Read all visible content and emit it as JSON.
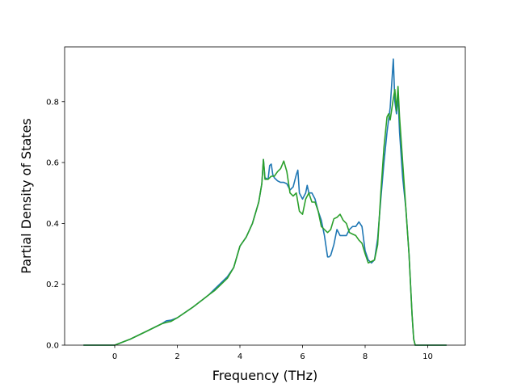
{
  "chart_data": {
    "type": "line",
    "xlabel": "Frequency (THz)",
    "ylabel": "Partial Density of States",
    "xlim": [
      -1.6,
      11.2
    ],
    "ylim": [
      0.0,
      0.98
    ],
    "x_ticks": [
      "0",
      "2",
      "4",
      "6",
      "8",
      "10"
    ],
    "y_ticks": [
      "0.0",
      "0.2",
      "0.4",
      "0.6",
      "0.8"
    ],
    "grid": false,
    "legend": "none",
    "series": [
      {
        "color": "#1f77b4",
        "x": [
          -1.0,
          0.0,
          0.5,
          1.0,
          1.5,
          1.65,
          1.8,
          2.0,
          2.5,
          3.0,
          3.2,
          3.4,
          3.6,
          3.8,
          4.0,
          4.2,
          4.4,
          4.6,
          4.7,
          4.75,
          4.8,
          4.9,
          4.95,
          5.0,
          5.05,
          5.1,
          5.2,
          5.3,
          5.4,
          5.5,
          5.6,
          5.7,
          5.8,
          5.85,
          5.9,
          6.0,
          6.1,
          6.15,
          6.2,
          6.3,
          6.4,
          6.5,
          6.6,
          6.7,
          6.8,
          6.85,
          6.9,
          7.0,
          7.1,
          7.2,
          7.3,
          7.4,
          7.5,
          7.6,
          7.7,
          7.8,
          7.9,
          8.0,
          8.1,
          8.2,
          8.3,
          8.4,
          8.5,
          8.6,
          8.7,
          8.8,
          8.9,
          8.95,
          9.0,
          9.05,
          9.1,
          9.2,
          9.3,
          9.4,
          9.5,
          9.55,
          9.6,
          9.7,
          10.0,
          10.6
        ],
        "y": [
          0.0,
          0.0,
          0.02,
          0.045,
          0.07,
          0.08,
          0.082,
          0.09,
          0.125,
          0.165,
          0.185,
          0.205,
          0.225,
          0.255,
          0.325,
          0.355,
          0.4,
          0.47,
          0.53,
          0.61,
          0.55,
          0.545,
          0.59,
          0.595,
          0.56,
          0.55,
          0.54,
          0.535,
          0.535,
          0.53,
          0.51,
          0.52,
          0.56,
          0.575,
          0.5,
          0.48,
          0.5,
          0.525,
          0.5,
          0.5,
          0.48,
          0.44,
          0.41,
          0.36,
          0.29,
          0.29,
          0.295,
          0.33,
          0.38,
          0.36,
          0.36,
          0.36,
          0.38,
          0.39,
          0.39,
          0.405,
          0.39,
          0.31,
          0.28,
          0.27,
          0.28,
          0.35,
          0.48,
          0.6,
          0.7,
          0.78,
          0.94,
          0.8,
          0.76,
          0.82,
          0.7,
          0.55,
          0.45,
          0.3,
          0.1,
          0.02,
          0.0,
          0.0,
          0.0,
          0.0
        ]
      },
      {
        "color": "#2ca02c",
        "x": [
          -1.0,
          0.0,
          0.5,
          1.0,
          1.5,
          1.65,
          1.8,
          2.0,
          2.5,
          3.0,
          3.2,
          3.4,
          3.6,
          3.8,
          4.0,
          4.2,
          4.4,
          4.6,
          4.7,
          4.75,
          4.8,
          4.9,
          5.0,
          5.1,
          5.2,
          5.3,
          5.4,
          5.5,
          5.6,
          5.7,
          5.8,
          5.9,
          6.0,
          6.1,
          6.2,
          6.3,
          6.4,
          6.5,
          6.6,
          6.7,
          6.8,
          6.9,
          7.0,
          7.1,
          7.2,
          7.3,
          7.4,
          7.5,
          7.6,
          7.7,
          7.8,
          7.9,
          8.0,
          8.1,
          8.2,
          8.3,
          8.4,
          8.5,
          8.6,
          8.7,
          8.75,
          8.8,
          8.9,
          8.95,
          9.0,
          9.05,
          9.1,
          9.2,
          9.3,
          9.4,
          9.5,
          9.55,
          9.6,
          9.7,
          10.0,
          10.6
        ],
        "y": [
          0.0,
          0.0,
          0.02,
          0.045,
          0.07,
          0.075,
          0.078,
          0.09,
          0.125,
          0.165,
          0.18,
          0.2,
          0.22,
          0.255,
          0.325,
          0.355,
          0.4,
          0.47,
          0.53,
          0.61,
          0.545,
          0.545,
          0.555,
          0.555,
          0.57,
          0.58,
          0.605,
          0.57,
          0.5,
          0.49,
          0.5,
          0.44,
          0.43,
          0.48,
          0.5,
          0.47,
          0.47,
          0.44,
          0.39,
          0.38,
          0.37,
          0.38,
          0.415,
          0.42,
          0.43,
          0.41,
          0.4,
          0.37,
          0.365,
          0.36,
          0.345,
          0.335,
          0.3,
          0.27,
          0.275,
          0.28,
          0.33,
          0.5,
          0.65,
          0.75,
          0.76,
          0.74,
          0.81,
          0.84,
          0.77,
          0.85,
          0.75,
          0.6,
          0.45,
          0.3,
          0.1,
          0.02,
          0.0,
          0.0,
          0.0,
          0.0
        ]
      }
    ]
  }
}
